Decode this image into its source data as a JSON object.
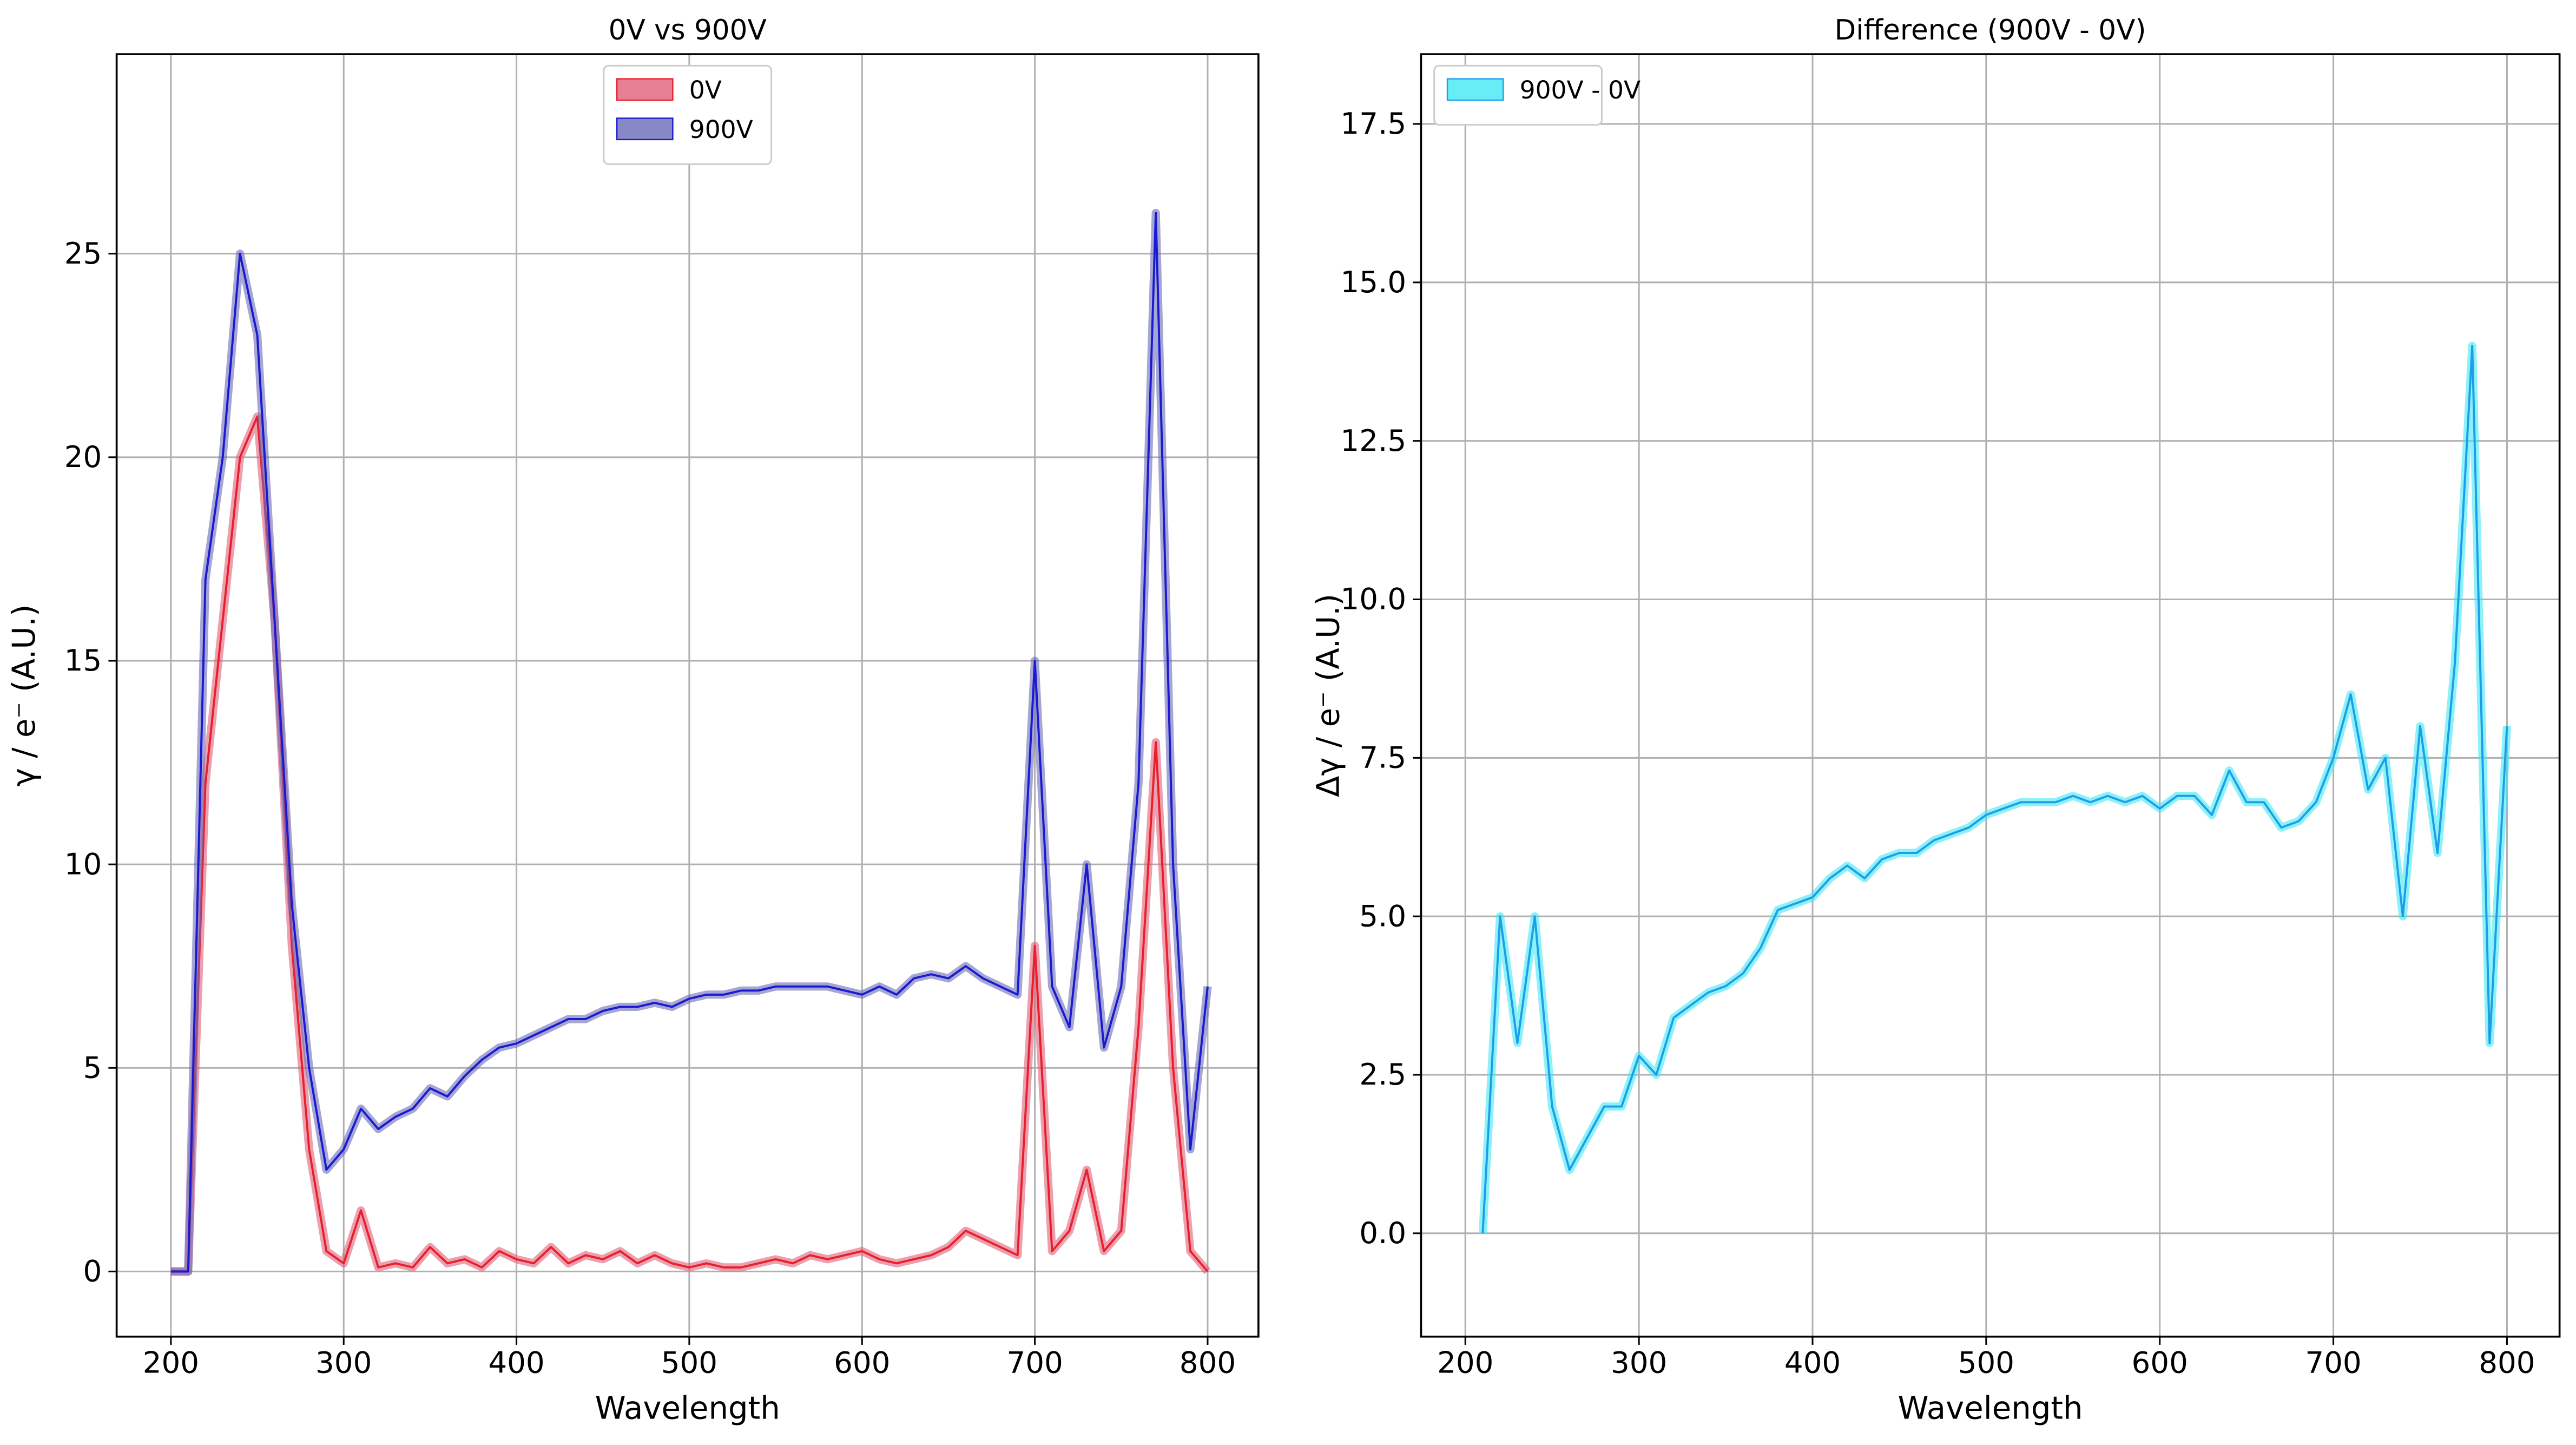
{
  "chart_data": [
    {
      "type": "line",
      "title": "0V vs 900V",
      "xlabel": "Wavelength",
      "ylabel": "γ / e⁻ (A.U.)",
      "x": [
        200,
        210,
        220,
        230,
        240,
        250,
        260,
        270,
        280,
        290,
        300,
        310,
        320,
        330,
        340,
        350,
        360,
        370,
        380,
        390,
        400,
        410,
        420,
        430,
        440,
        450,
        460,
        470,
        480,
        490,
        500,
        510,
        520,
        530,
        540,
        550,
        560,
        570,
        580,
        590,
        600,
        610,
        620,
        630,
        640,
        650,
        660,
        670,
        680,
        690,
        700,
        710,
        720,
        730,
        740,
        750,
        760,
        770,
        780,
        790,
        800
      ],
      "series": [
        {
          "name": "0V",
          "color": "#e8202c",
          "fill": "#e0607a",
          "values": [
            0,
            0,
            12,
            16,
            20,
            21,
            16,
            8,
            3,
            0.5,
            0.2,
            1.5,
            0.1,
            0.2,
            0.1,
            0.6,
            0.2,
            0.3,
            0.1,
            0.5,
            0.3,
            0.2,
            0.6,
            0.2,
            0.4,
            0.3,
            0.5,
            0.2,
            0.4,
            0.2,
            0.1,
            0.2,
            0.1,
            0.1,
            0.2,
            0.3,
            0.2,
            0.4,
            0.3,
            0.4,
            0.5,
            0.3,
            0.2,
            0.3,
            0.4,
            0.6,
            1,
            0.8,
            0.6,
            0.4,
            8,
            0.5,
            1,
            2.5,
            0.5,
            1,
            6,
            13,
            5,
            0.5,
            0
          ]
        },
        {
          "name": "900V",
          "color": "#1a1ad0",
          "fill": "#6a6ab8",
          "values": [
            0,
            0,
            17,
            20,
            25,
            23,
            16,
            9,
            5,
            2.5,
            3,
            4,
            3.5,
            3.8,
            4,
            4.5,
            4.3,
            4.8,
            5.2,
            5.5,
            5.6,
            5.8,
            6,
            6.2,
            6.2,
            6.4,
            6.5,
            6.5,
            6.6,
            6.5,
            6.7,
            6.8,
            6.8,
            6.9,
            6.9,
            7,
            7,
            7,
            7,
            6.9,
            6.8,
            7,
            6.8,
            7.2,
            7.3,
            7.2,
            7.5,
            7.2,
            7,
            6.8,
            15,
            7,
            6,
            10,
            5.5,
            7,
            12,
            26,
            10,
            3,
            7
          ]
        }
      ],
      "xlim": [
        168.6,
        829.4
      ],
      "ylim": [
        -1.6,
        29.9
      ],
      "xticks": [
        200,
        300,
        400,
        500,
        600,
        700,
        800
      ],
      "yticks": [
        0,
        5,
        10,
        15,
        20,
        25
      ],
      "grid": true,
      "legend": "upper center"
    },
    {
      "type": "line",
      "title": "Difference (900V - 0V)",
      "xlabel": "Wavelength",
      "ylabel": "Δγ / e⁻ (A.U.)",
      "x": [
        210,
        220,
        230,
        240,
        250,
        260,
        270,
        280,
        290,
        300,
        310,
        320,
        330,
        340,
        350,
        360,
        370,
        380,
        390,
        400,
        410,
        420,
        430,
        440,
        450,
        460,
        470,
        480,
        490,
        500,
        510,
        520,
        530,
        540,
        550,
        560,
        570,
        580,
        590,
        600,
        610,
        620,
        630,
        640,
        650,
        660,
        670,
        680,
        690,
        700,
        710,
        720,
        730,
        740,
        750,
        760,
        770,
        780,
        790,
        800
      ],
      "series": [
        {
          "name": "900V - 0V",
          "color": "#1c9ee8",
          "fill": "#40e8f4",
          "values": [
            0,
            5,
            3,
            5,
            2,
            1,
            1.5,
            2,
            2,
            2.8,
            2.5,
            3.4,
            3.6,
            3.8,
            3.9,
            4.1,
            4.5,
            5.1,
            5.2,
            5.3,
            5.6,
            5.8,
            5.6,
            5.9,
            6,
            6,
            6.2,
            6.3,
            6.4,
            6.6,
            6.7,
            6.8,
            6.8,
            6.8,
            6.9,
            6.8,
            6.9,
            6.8,
            6.9,
            6.7,
            6.9,
            6.9,
            6.6,
            7.3,
            6.8,
            6.8,
            6.4,
            6.5,
            6.8,
            7.5,
            8.5,
            7,
            7.5,
            5,
            8,
            6,
            9,
            14,
            3,
            8
          ]
        }
      ],
      "xlim": [
        174.5,
        830.3
      ],
      "ylim": [
        -1.63,
        18.6
      ],
      "xticks": [
        200,
        300,
        400,
        500,
        600,
        700,
        800
      ],
      "yticks": [
        {
          "value": 0,
          "label": "0.0"
        },
        2.5,
        {
          "value": 5,
          "label": "5.0"
        },
        7.5,
        {
          "value": 10,
          "label": "10.0"
        },
        12.5,
        {
          "value": 15,
          "label": "15.0"
        },
        17.5
      ],
      "grid": true,
      "legend": "upper left"
    }
  ]
}
